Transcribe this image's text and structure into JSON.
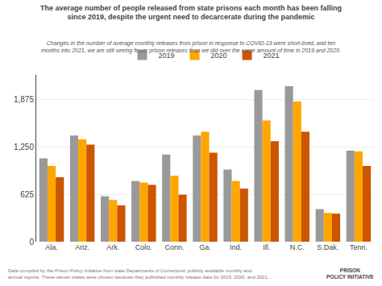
{
  "chart_data": {
    "type": "bar",
    "title": "The average number of people released from state prisons each month has been falling\nsince 2019, despite the urgent need to decarcerate during the pandemic",
    "subtitle": "Changes in the number of average monthly releases from prison in response to COVID-19 were short-lived, and ten\nmonths into 2021, we are still seeing fewer prison releases than we did over the same amount of time in 2019 and 2020.",
    "annotations": [
      "Data compiled by the Prison Policy Initiative from state Departments of Corrections' publicly available monthly and\nannual reports. These eleven states were chosen because they published monthly release data for 2019, 2020, and 2021.",
      "PRISON\nPOLICY INITIATIVE"
    ],
    "categories": [
      "Ala.",
      "Ariz.",
      "Ark.",
      "Colo.",
      "Conn.",
      "Ga.",
      "Ind.",
      "Ill.",
      "N.C.",
      "S.Dak.",
      "Tenn."
    ],
    "series": [
      {
        "name": "2019",
        "color": "#999999",
        "values": [
          1100,
          1400,
          600,
          800,
          1150,
          1400,
          950,
          2000,
          2050,
          430,
          1200
        ]
      },
      {
        "name": "2020",
        "color": "#FFA500",
        "values": [
          1000,
          1350,
          550,
          780,
          870,
          1450,
          800,
          1600,
          1850,
          380,
          1190
        ]
      },
      {
        "name": "2021",
        "color": "#CC5500",
        "values": [
          850,
          1280,
          480,
          750,
          620,
          1175,
          700,
          1325,
          1450,
          370,
          1000
        ]
      }
    ],
    "ylim": [
      0,
      2200
    ],
    "yticks": [
      0,
      625,
      {
        "value": 1250,
        "label": "1,250"
      },
      {
        "value": 1875,
        "label": "1,875"
      }
    ],
    "grid": true,
    "legend": "top"
  }
}
